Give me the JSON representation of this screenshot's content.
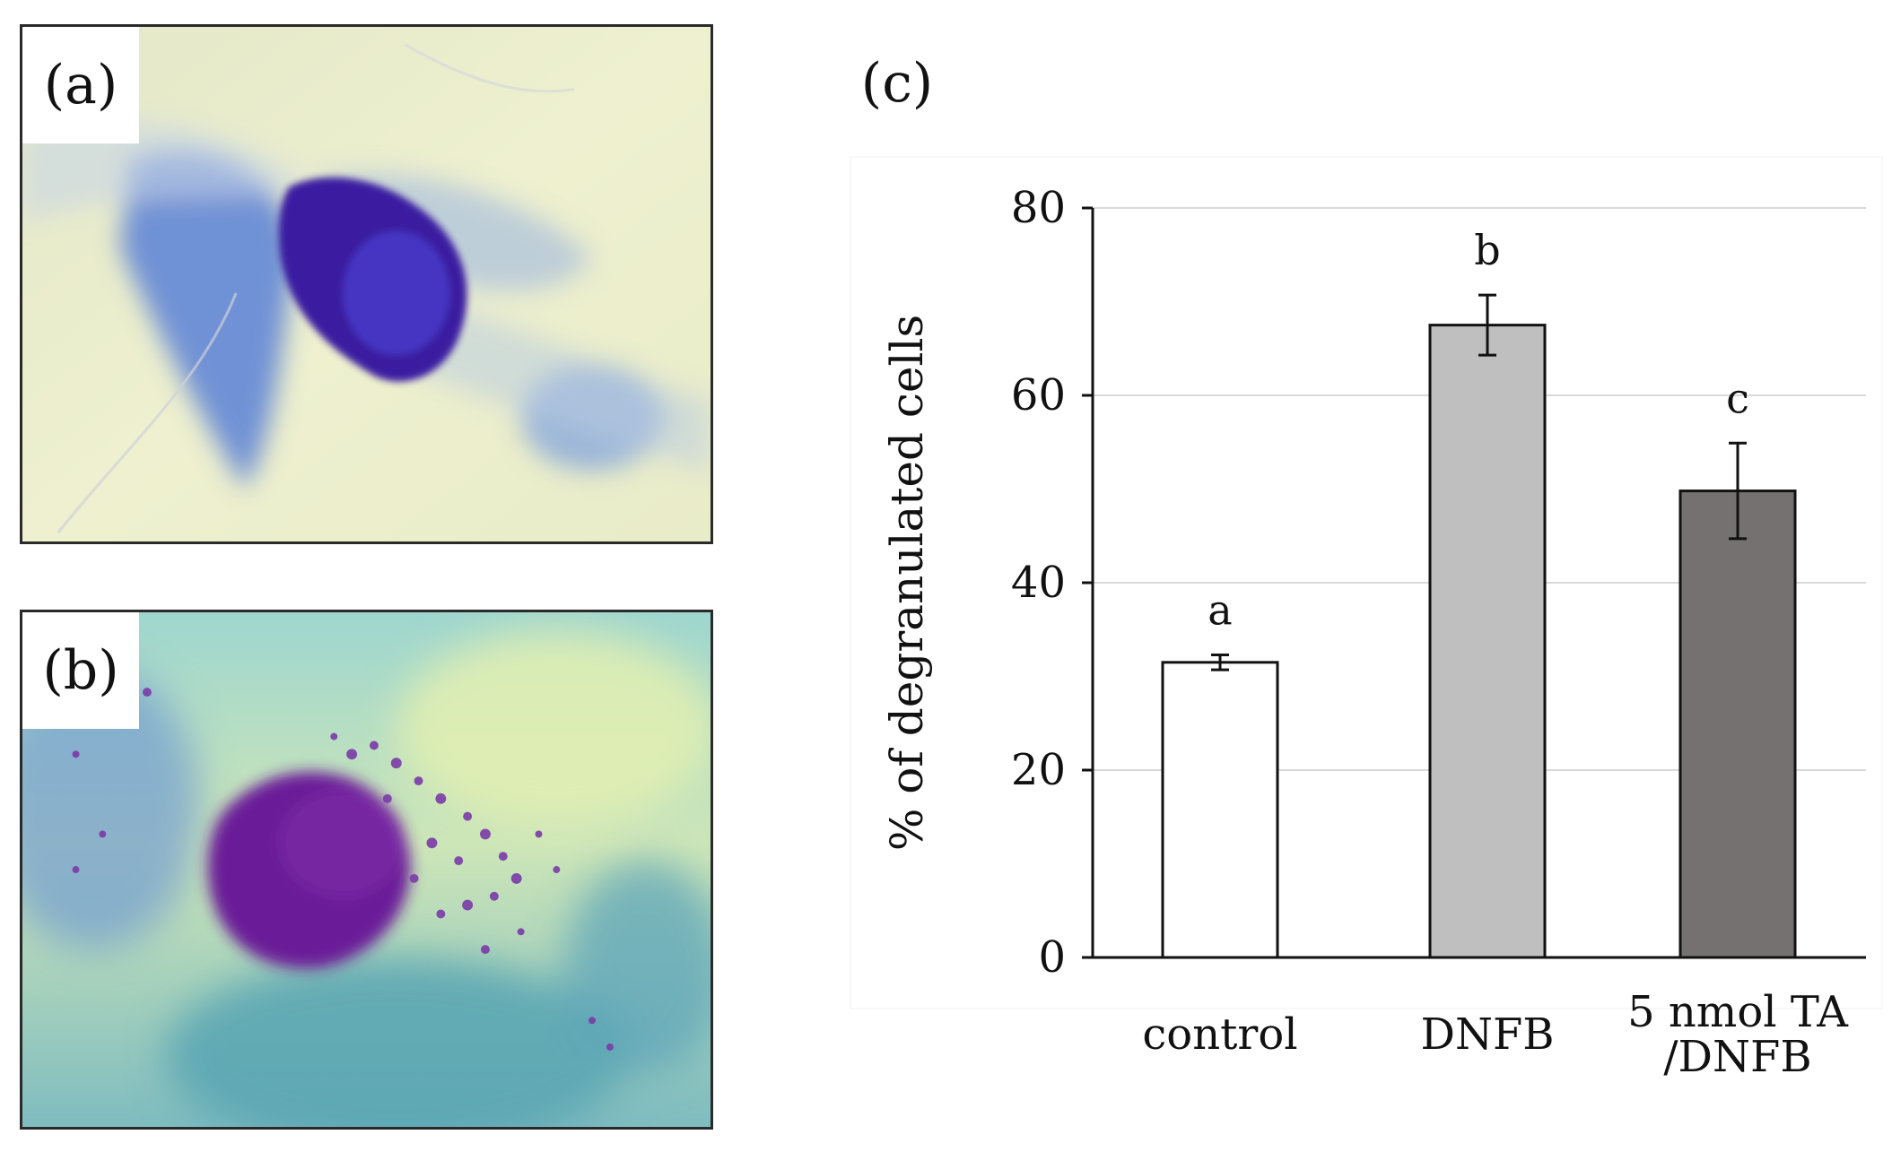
{
  "panels": {
    "a": {
      "label": "(a)"
    },
    "b": {
      "label": "(b)"
    },
    "c": {
      "label": "(c)"
    }
  },
  "colors": {
    "bar_control": "#ffffff",
    "bar_dnfb": "#bfbfbf",
    "bar_ta": "#767171",
    "bar_outline": "#111111",
    "gridline": "#d9d9d9"
  },
  "chart_data": {
    "type": "bar",
    "categories": [
      "control",
      "DNFB",
      "5 nmol TA\n/DNFB"
    ],
    "values": [
      31.5,
      67.5,
      49.8
    ],
    "errors": [
      0.8,
      3.2,
      5.1
    ],
    "significance_letters": [
      "a",
      "b",
      "c"
    ],
    "title": "",
    "xlabel": "",
    "ylabel": "% of degranulated cells",
    "ylim": [
      0,
      80
    ],
    "yticks": [
      0,
      20,
      40,
      60,
      80
    ],
    "grid": true
  }
}
